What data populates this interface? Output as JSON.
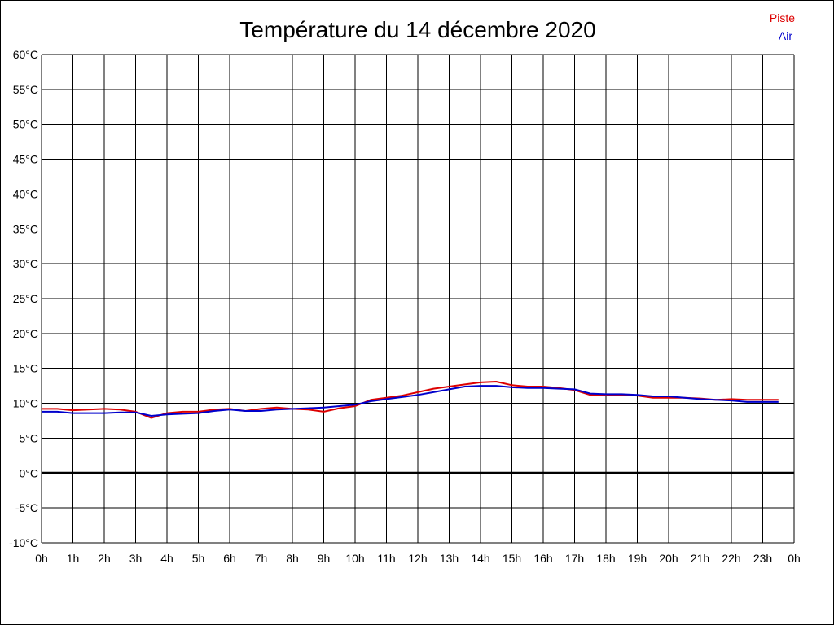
{
  "chart_data": {
    "type": "line",
    "title": "Température du 14 décembre 2020",
    "xlabel": "",
    "ylabel": "",
    "x_ticks": [
      "0h",
      "1h",
      "2h",
      "3h",
      "4h",
      "5h",
      "6h",
      "7h",
      "8h",
      "9h",
      "10h",
      "11h",
      "12h",
      "13h",
      "14h",
      "15h",
      "16h",
      "17h",
      "18h",
      "19h",
      "20h",
      "21h",
      "22h",
      "23h",
      "0h"
    ],
    "y_ticks": [
      "60°C",
      "55°C",
      "50°C",
      "45°C",
      "40°C",
      "35°C",
      "30°C",
      "25°C",
      "20°C",
      "15°C",
      "10°C",
      "5°C",
      "0°C",
      "-5°C",
      "-10°C"
    ],
    "xlim": [
      0,
      24
    ],
    "ylim": [
      -10,
      60
    ],
    "grid": true,
    "zero_line": true,
    "legend_position": "top-right",
    "x": [
      0,
      0.5,
      1,
      1.5,
      2,
      2.5,
      3,
      3.5,
      4,
      4.5,
      5,
      5.5,
      6,
      6.5,
      7,
      7.5,
      8,
      8.5,
      9,
      9.5,
      10,
      10.5,
      11,
      11.5,
      12,
      12.5,
      13,
      13.5,
      14,
      14.5,
      15,
      15.5,
      16,
      16.5,
      17,
      17.5,
      18,
      18.5,
      19,
      19.5,
      20,
      20.5,
      21,
      21.5,
      22,
      22.5,
      23,
      23.5
    ],
    "series": [
      {
        "name": "Piste",
        "color": "#dd0000",
        "values": [
          9.2,
          9.2,
          9.0,
          9.1,
          9.2,
          9.1,
          8.8,
          7.9,
          8.6,
          8.8,
          8.8,
          9.1,
          9.2,
          8.9,
          9.2,
          9.4,
          9.2,
          9.1,
          8.8,
          9.3,
          9.6,
          10.5,
          10.8,
          11.1,
          11.6,
          12.1,
          12.4,
          12.7,
          13.0,
          13.1,
          12.6,
          12.4,
          12.4,
          12.2,
          11.9,
          11.2,
          11.2,
          11.2,
          11.1,
          10.8,
          10.8,
          10.8,
          10.7,
          10.5,
          10.6,
          10.5,
          10.5,
          10.5
        ]
      },
      {
        "name": "Air",
        "color": "#0000cc",
        "values": [
          8.8,
          8.8,
          8.6,
          8.6,
          8.6,
          8.7,
          8.7,
          8.2,
          8.4,
          8.5,
          8.6,
          8.9,
          9.1,
          8.9,
          8.9,
          9.1,
          9.2,
          9.3,
          9.4,
          9.6,
          9.8,
          10.3,
          10.6,
          10.9,
          11.2,
          11.6,
          12.0,
          12.4,
          12.5,
          12.5,
          12.3,
          12.2,
          12.2,
          12.1,
          12.0,
          11.4,
          11.3,
          11.3,
          11.2,
          11.0,
          11.0,
          10.8,
          10.6,
          10.5,
          10.4,
          10.2,
          10.2,
          10.2
        ]
      }
    ]
  }
}
